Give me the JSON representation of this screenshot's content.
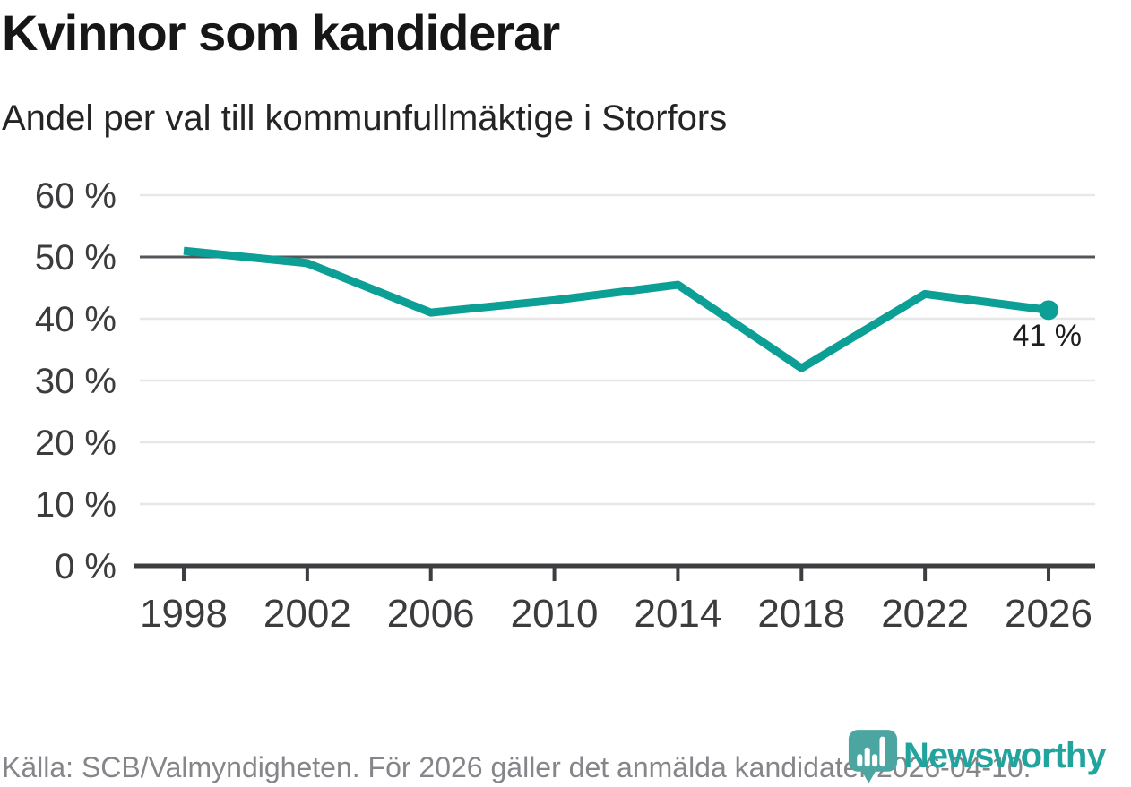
{
  "header": {
    "title": "Kvinnor som kandiderar",
    "subtitle": "Andel per val till kommunfullmäktige i Storfors"
  },
  "chart_data": {
    "type": "line",
    "title": "Kvinnor som kandiderar",
    "subtitle": "Andel per val till kommunfullmäktige i Storfors",
    "categories": [
      "1998",
      "2002",
      "2006",
      "2010",
      "2014",
      "2018",
      "2022",
      "2026"
    ],
    "values": [
      51,
      49,
      41,
      43,
      45.5,
      32,
      44,
      41.4
    ],
    "unit": "%",
    "ylim": [
      0,
      60
    ],
    "ytick_step": 10,
    "ytick_labels": [
      "0 %",
      "10 %",
      "20 %",
      "30 %",
      "40 %",
      "50 %",
      "60 %"
    ],
    "grid": "horizontal",
    "emphasized_gridline": 50,
    "end_label": "41 %",
    "legend": "none",
    "line_color": "#0b9f95",
    "marker": "end-point-only"
  },
  "footer": {
    "source_text": "Källa: SCB/Valmyndigheten. För 2026 gäller det anmälda kandidater 2026-04-10.",
    "logo_text": "Newsworthy"
  },
  "colors": {
    "accent_teal": "#0b9f95",
    "logo_teal": "#4ba5a1",
    "logo_text_teal": "#21a49d",
    "gridline_light": "#e7e7e8",
    "gridline_emphasized": "#55565a",
    "axis_dark": "#3d3e40",
    "text_dark": "#161616",
    "tick_label": "#3c3c3e",
    "footer_gray": "#85868a"
  }
}
